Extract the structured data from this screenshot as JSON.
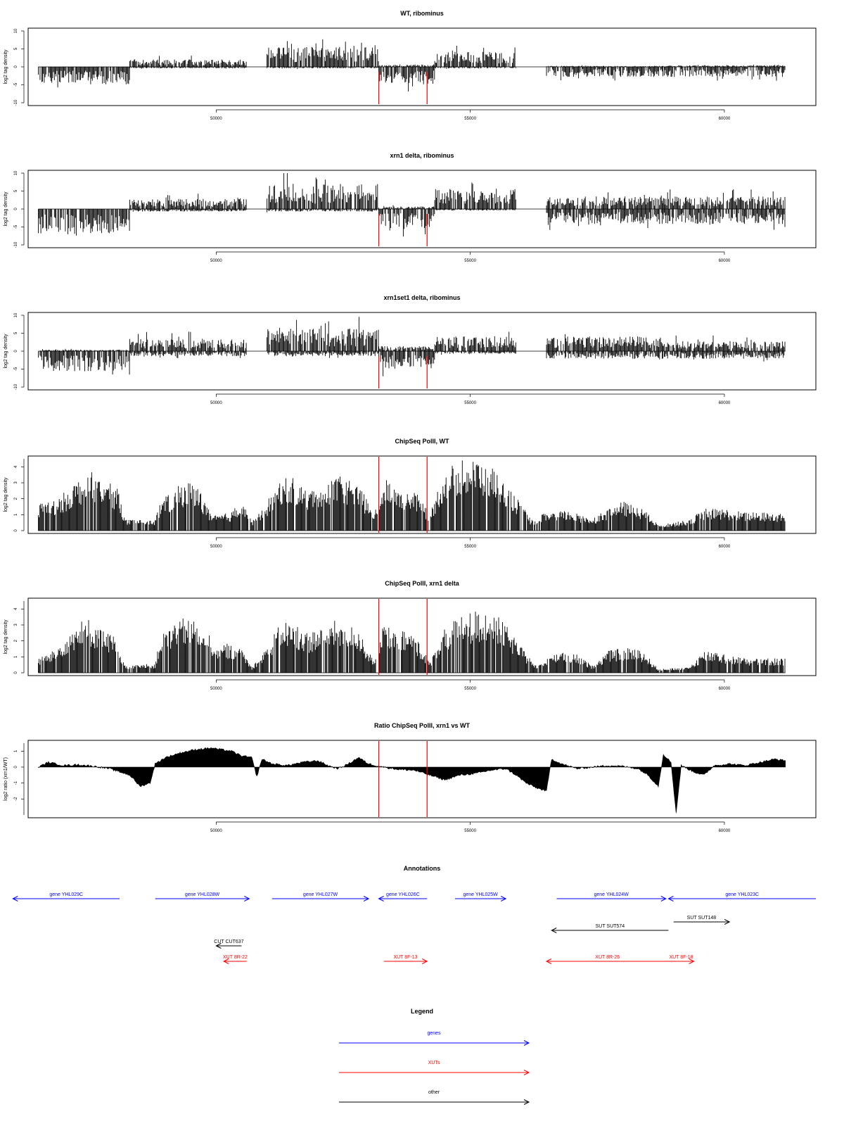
{
  "chart_data": [
    {
      "type": "bar",
      "title": "WT, ribominus",
      "ylabel": "log2 tag density",
      "ylim": [
        -10,
        10
      ],
      "yticks": [
        "10",
        "5",
        "0",
        "-5",
        "-10"
      ],
      "xlim": [
        46300,
        61800
      ],
      "xticks": [
        "50000",
        "55000",
        "60000"
      ],
      "segments": [
        {
          "x": [
            46500,
            48300
          ],
          "up": 0,
          "down": -3.5
        },
        {
          "x": [
            48300,
            50600
          ],
          "up": 1.5,
          "down": -0.3
        },
        {
          "x": [
            51000,
            53200
          ],
          "up": 4,
          "down": -0.3
        },
        {
          "x": [
            53200,
            54300
          ],
          "up": 0.5,
          "down": -3.5
        },
        {
          "x": [
            54300,
            55900
          ],
          "up": 3,
          "down": -0.3
        },
        {
          "x": [
            56500,
            58800
          ],
          "up": 0.2,
          "down": -2
        },
        {
          "x": [
            58800,
            61200
          ],
          "up": 0.3,
          "down": -2
        }
      ],
      "markers": [
        53200,
        54150
      ]
    },
    {
      "type": "bar",
      "title": "xrn1 delta, ribominus",
      "ylabel": "log2 tag density",
      "ylim": [
        -10,
        10
      ],
      "yticks": [
        "10",
        "5",
        "0",
        "-5",
        "-10"
      ],
      "xlim": [
        46300,
        61800
      ],
      "xticks": [
        "50000",
        "55000",
        "60000"
      ],
      "segments": [
        {
          "x": [
            46500,
            48300
          ],
          "up": 0,
          "down": -5
        },
        {
          "x": [
            48300,
            50600
          ],
          "up": 2,
          "down": -0.5
        },
        {
          "x": [
            51000,
            53200
          ],
          "up": 5,
          "down": -0.5
        },
        {
          "x": [
            53200,
            54300
          ],
          "up": 0.5,
          "down": -4
        },
        {
          "x": [
            54300,
            55900
          ],
          "up": 4,
          "down": -0.3
        },
        {
          "x": [
            56500,
            58800
          ],
          "up": 2.5,
          "down": -3
        },
        {
          "x": [
            58800,
            61200
          ],
          "up": 2.5,
          "down": -3
        }
      ],
      "markers": [
        53200,
        54150
      ]
    },
    {
      "type": "bar",
      "title": "xrn1set1 delta, ribominus",
      "ylabel": "log2 tag density",
      "ylim": [
        -10,
        10
      ],
      "yticks": [
        "10",
        "5",
        "0",
        "-5",
        "-10"
      ],
      "xlim": [
        46300,
        61800
      ],
      "xticks": [
        "50000",
        "55000",
        "60000"
      ],
      "segments": [
        {
          "x": [
            46500,
            48300
          ],
          "up": 0.3,
          "down": -4
        },
        {
          "x": [
            48300,
            50600
          ],
          "up": 2.5,
          "down": -1
        },
        {
          "x": [
            51000,
            53200
          ],
          "up": 4.5,
          "down": -1
        },
        {
          "x": [
            53200,
            54300
          ],
          "up": 1,
          "down": -3.5
        },
        {
          "x": [
            54300,
            55900
          ],
          "up": 3,
          "down": -0.5
        },
        {
          "x": [
            56500,
            58800
          ],
          "up": 3,
          "down": -1.5
        },
        {
          "x": [
            58800,
            61200
          ],
          "up": 2,
          "down": -1.5
        }
      ],
      "markers": [
        53200,
        54150
      ]
    },
    {
      "type": "bar",
      "title": "ChipSeq PolII, WT",
      "ylabel": "log2 tag density",
      "ylim": [
        0,
        4.5
      ],
      "yticks": [
        "4",
        "3",
        "2",
        "1",
        "0"
      ],
      "xlim": [
        46300,
        61800
      ],
      "xticks": [
        "50000",
        "55000",
        "60000"
      ],
      "envelope": [
        [
          46500,
          1.5
        ],
        [
          46900,
          1.8
        ],
        [
          47200,
          2.6
        ],
        [
          47500,
          3.3
        ],
        [
          47800,
          2.8
        ],
        [
          48100,
          2.2
        ],
        [
          48200,
          0.6
        ],
        [
          48800,
          0.6
        ],
        [
          48900,
          1.6
        ],
        [
          49200,
          2.3
        ],
        [
          49400,
          2.8
        ],
        [
          49700,
          2.2
        ],
        [
          49900,
          0.8
        ],
        [
          50300,
          1
        ],
        [
          50500,
          1.8
        ],
        [
          50700,
          0.5
        ],
        [
          51000,
          1.6
        ],
        [
          51300,
          3
        ],
        [
          51600,
          2.8
        ],
        [
          51800,
          2.1
        ],
        [
          52000,
          2.6
        ],
        [
          52300,
          3
        ],
        [
          52600,
          2.9
        ],
        [
          52900,
          2.1
        ],
        [
          53100,
          0.8
        ],
        [
          53300,
          3
        ],
        [
          53600,
          2.4
        ],
        [
          53900,
          2.2
        ],
        [
          54200,
          1
        ],
        [
          54500,
          3.4
        ],
        [
          54800,
          3.8
        ],
        [
          55100,
          4
        ],
        [
          55400,
          3.6
        ],
        [
          55800,
          2.3
        ],
        [
          56200,
          0.6
        ],
        [
          56500,
          1
        ],
        [
          56900,
          1.1
        ],
        [
          57400,
          0.7
        ],
        [
          57700,
          1.2
        ],
        [
          58000,
          1.6
        ],
        [
          58400,
          1.2
        ],
        [
          58700,
          0.3
        ],
        [
          59300,
          0.6
        ],
        [
          59600,
          1.2
        ],
        [
          60000,
          1.2
        ],
        [
          60400,
          1
        ],
        [
          60800,
          1
        ],
        [
          61200,
          0.9
        ]
      ],
      "markers": [
        53200,
        54150
      ]
    },
    {
      "type": "bar",
      "title": "ChipSeq PolII, xrn1 delta",
      "ylabel": "log2 tag density",
      "ylim": [
        0,
        4.5
      ],
      "yticks": [
        "4",
        "3",
        "2",
        "1",
        "0"
      ],
      "xlim": [
        46300,
        61800
      ],
      "xticks": [
        "50000",
        "55000",
        "60000"
      ],
      "envelope": [
        [
          46500,
          0.8
        ],
        [
          46800,
          1.2
        ],
        [
          47100,
          2.2
        ],
        [
          47400,
          3
        ],
        [
          47700,
          2.6
        ],
        [
          48000,
          2
        ],
        [
          48200,
          0.4
        ],
        [
          48800,
          0.5
        ],
        [
          48900,
          2
        ],
        [
          49200,
          2.8
        ],
        [
          49500,
          3.2
        ],
        [
          49800,
          2.6
        ],
        [
          50000,
          1.4
        ],
        [
          50200,
          1.6
        ],
        [
          50500,
          1.4
        ],
        [
          50700,
          0.3
        ],
        [
          51000,
          1.5
        ],
        [
          51300,
          2.9
        ],
        [
          51600,
          2.6
        ],
        [
          51800,
          2.2
        ],
        [
          52100,
          2.6
        ],
        [
          52400,
          2.9
        ],
        [
          52800,
          2.4
        ],
        [
          53100,
          0.6
        ],
        [
          53300,
          2.8
        ],
        [
          53600,
          2.3
        ],
        [
          53900,
          2.2
        ],
        [
          54200,
          0.6
        ],
        [
          54500,
          2.4
        ],
        [
          54800,
          3.2
        ],
        [
          55200,
          3.4
        ],
        [
          55600,
          3
        ],
        [
          56000,
          1.4
        ],
        [
          56300,
          0.4
        ],
        [
          56700,
          1.2
        ],
        [
          57100,
          1
        ],
        [
          57400,
          0.4
        ],
        [
          57700,
          1.2
        ],
        [
          58100,
          1.4
        ],
        [
          58400,
          1.2
        ],
        [
          58700,
          0.2
        ],
        [
          59300,
          0.3
        ],
        [
          59600,
          1.2
        ],
        [
          60000,
          1
        ],
        [
          60400,
          0.8
        ],
        [
          60800,
          0.8
        ],
        [
          61200,
          0.8
        ]
      ],
      "markers": [
        53200,
        54150
      ]
    },
    {
      "type": "area",
      "title": "Ratio ChipSeq PolII, xrn1 vs WT",
      "ylabel": "log2 ratio (xrn1/WT)",
      "ylim": [
        -3,
        1.5
      ],
      "yticks": [
        "1",
        "0",
        "-1",
        "-2"
      ],
      "xlim": [
        46300,
        61800
      ],
      "xticks": [
        "50000",
        "55000",
        "60000"
      ],
      "curve": [
        [
          46500,
          0
        ],
        [
          46700,
          0.3
        ],
        [
          47000,
          0.1
        ],
        [
          47300,
          0.15
        ],
        [
          47600,
          0.05
        ],
        [
          47900,
          -0.1
        ],
        [
          48100,
          -0.3
        ],
        [
          48300,
          -0.5
        ],
        [
          48500,
          -1.2
        ],
        [
          48700,
          -1
        ],
        [
          48800,
          0.2
        ],
        [
          49000,
          0.6
        ],
        [
          49300,
          0.9
        ],
        [
          49600,
          1.1
        ],
        [
          49900,
          1.2
        ],
        [
          50100,
          1.1
        ],
        [
          50300,
          1
        ],
        [
          50500,
          0.7
        ],
        [
          50700,
          0.6
        ],
        [
          50800,
          -0.6
        ],
        [
          50900,
          0.5
        ],
        [
          51100,
          0.2
        ],
        [
          51400,
          0.1
        ],
        [
          51700,
          0.3
        ],
        [
          52000,
          0.4
        ],
        [
          52200,
          0.1
        ],
        [
          52400,
          -0.1
        ],
        [
          52600,
          0.2
        ],
        [
          52800,
          0.6
        ],
        [
          53000,
          0.2
        ],
        [
          53300,
          0
        ],
        [
          53600,
          -0.15
        ],
        [
          53900,
          -0.2
        ],
        [
          54200,
          -0.5
        ],
        [
          54500,
          -0.8
        ],
        [
          54800,
          -0.5
        ],
        [
          55100,
          -0.4
        ],
        [
          55400,
          -0.2
        ],
        [
          55700,
          -0.1
        ],
        [
          55900,
          -0.5
        ],
        [
          56100,
          -1
        ],
        [
          56300,
          -1.3
        ],
        [
          56500,
          -1.5
        ],
        [
          56600,
          0.5
        ],
        [
          56800,
          0.2
        ],
        [
          57100,
          -0.1
        ],
        [
          57400,
          0
        ],
        [
          57700,
          0.1
        ],
        [
          58000,
          0.05
        ],
        [
          58300,
          -0.1
        ],
        [
          58500,
          -0.5
        ],
        [
          58700,
          -1.2
        ],
        [
          58800,
          0.8
        ],
        [
          58950,
          0.3
        ],
        [
          59050,
          -2.9
        ],
        [
          59150,
          0.1
        ],
        [
          59400,
          -0.3
        ],
        [
          59600,
          -0.5
        ],
        [
          59800,
          0.1
        ],
        [
          60100,
          0.2
        ],
        [
          60400,
          0.1
        ],
        [
          60700,
          0.3
        ],
        [
          61000,
          0.5
        ],
        [
          61200,
          0.4
        ]
      ],
      "markers": [
        53200,
        54150
      ]
    }
  ],
  "annotations": {
    "title": "Annotations",
    "items": [
      {
        "label": "gene YHL029C",
        "color": "#0000ff",
        "x1": 48100,
        "x2": 46000,
        "row": 0
      },
      {
        "label": "gene YHL028W",
        "color": "#0000ff",
        "x1": 48800,
        "x2": 50650,
        "row": 0
      },
      {
        "label": "gene YHL027W",
        "color": "#0000ff",
        "x1": 51100,
        "x2": 53000,
        "row": 0
      },
      {
        "label": "gene YHL026C",
        "color": "#0000ff",
        "x1": 54150,
        "x2": 53200,
        "row": 0
      },
      {
        "label": "gene YHL025W",
        "color": "#0000ff",
        "x1": 54700,
        "x2": 55700,
        "row": 0
      },
      {
        "label": "gene YHL024W",
        "color": "#0000ff",
        "x1": 56700,
        "x2": 58850,
        "row": 0
      },
      {
        "label": "gene YHL023C",
        "color": "#0000ff",
        "x": [
          61800,
          58900
        ],
        "row": 0
      },
      {
        "label": "SUT SUT148",
        "color": "#000000",
        "x1": 59000,
        "x2": 60100,
        "row": 1
      },
      {
        "label": "SUT SUT574",
        "color": "#000000",
        "x1": 58900,
        "x2": 56600,
        "row": 2
      },
      {
        "label": "CUT CUT637",
        "color": "#000000",
        "x1": 50500,
        "x2": 50000,
        "row": 3
      },
      {
        "label": "XUT 8R-22",
        "color": "#ff0000",
        "x1": 50600,
        "x2": 50150,
        "row": 4
      },
      {
        "label": "XUT 8F-13",
        "color": "#ff0000",
        "x1": 53300,
        "x2": 54150,
        "row": 4
      },
      {
        "label": "XUT 8R-26",
        "color": "#ff0000",
        "x1": 58900,
        "x2": 56500,
        "row": 4
      },
      {
        "label": "XUT 8F-18",
        "color": "#ff0000",
        "x1": 58900,
        "x2": 59400,
        "row": 4
      }
    ]
  },
  "legend": {
    "title": "Legend",
    "items": [
      {
        "label": "genes",
        "color": "#0000ff"
      },
      {
        "label": "XUTs",
        "color": "#ff0000"
      },
      {
        "label": "other",
        "color": "#000000"
      }
    ]
  }
}
